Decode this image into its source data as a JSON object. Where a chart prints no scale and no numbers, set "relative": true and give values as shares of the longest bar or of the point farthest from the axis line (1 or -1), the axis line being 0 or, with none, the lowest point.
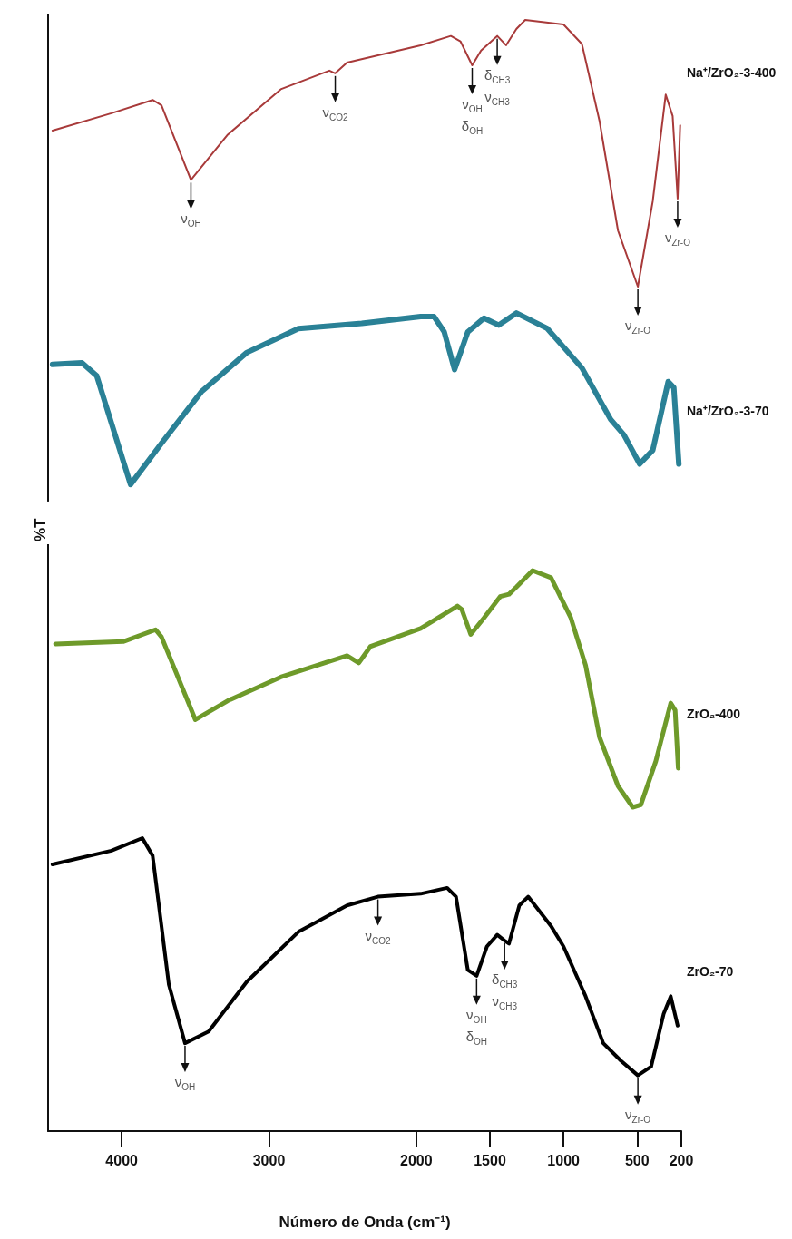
{
  "chart_data": [
    {
      "type": "line",
      "relative": true,
      "xlim": [
        4500,
        200
      ],
      "xticks": [
        4000,
        3000,
        2000,
        1500,
        1000,
        500,
        200
      ],
      "tick_labels": false,
      "grid": false,
      "legend": false,
      "marker": "none",
      "line_style": "solid",
      "series": [
        {
          "name": "Na⁺/ZrO₂-3-400",
          "color": "#a83a3a",
          "x": [
            4470,
            4070,
            3790,
            3730,
            3530,
            3280,
            2920,
            2590,
            2550,
            2470,
            1970,
            1765,
            1700,
            1620,
            1560,
            1450,
            1390,
            1320,
            1260,
            1000,
            875,
            755,
            630,
            495,
            394,
            306,
            259,
            225,
            208
          ],
          "values": [
            0.585,
            0.65,
            0.7,
            0.68,
            0.4,
            0.57,
            0.74,
            0.81,
            0.8,
            0.84,
            0.905,
            0.94,
            0.92,
            0.83,
            0.885,
            0.94,
            0.905,
            0.966,
            1.0,
            0.983,
            0.91,
            0.62,
            0.21,
            0,
            0.32,
            0.72,
            0.64,
            0.33,
            0.605
          ]
        }
      ],
      "annotations": [
        {
          "text": "ν$_{OH}$",
          "x": 3530,
          "y": 0.4
        },
        {
          "text": "ν$_{CO2}$",
          "x": 2550,
          "y": 0.8
        },
        {
          "text": "ν$_{OH}$\nδ$_{OH}$",
          "x": 1620,
          "y": 0.83
        },
        {
          "text": "δ$_{CH3}$\nν$_{CH3}$",
          "x": 1450,
          "y": 0.94
        },
        {
          "text": "ν$_{Zr-O}$",
          "x": 495,
          "y": 0
        },
        {
          "text": "ν$_{Zr-O}$",
          "x": 225,
          "y": 0.33
        }
      ]
    },
    {
      "type": "line",
      "relative": true,
      "xlim": [
        4500,
        200
      ],
      "xticks": [
        4000,
        3000,
        2000,
        1500,
        1000,
        500,
        200
      ],
      "tick_labels": false,
      "grid": false,
      "legend": false,
      "marker": "none",
      "line_style": "solid",
      "ylabel": "%T",
      "series": [
        {
          "name": "Na⁺/ZrO₂-3-70",
          "color": "#2a8196",
          "x": [
            4470,
            4270,
            4170,
            3940,
            3730,
            3460,
            3150,
            2800,
            2370,
            1970,
            1880,
            1810,
            1740,
            1650,
            1540,
            1440,
            1320,
            1110,
            875,
            680,
            590,
            483,
            394,
            289,
            251,
            217
          ],
          "values": [
            0.7,
            0.71,
            0.635,
            0,
            0.24,
            0.54,
            0.77,
            0.91,
            0.94,
            0.98,
            0.98,
            0.89,
            0.67,
            0.89,
            0.97,
            0.93,
            1.0,
            0.91,
            0.68,
            0.38,
            0.29,
            0.12,
            0.2,
            0.6,
            0.565,
            0.12
          ]
        }
      ]
    },
    {
      "type": "line",
      "relative": true,
      "xlim": [
        4500,
        200
      ],
      "xticks": [
        4000,
        3000,
        2000,
        1500,
        1000,
        500,
        200
      ],
      "tick_labels": false,
      "grid": false,
      "legend": false,
      "marker": "none",
      "line_style": "solid",
      "series": [
        {
          "name": "ZrO₂-400",
          "color": "#6e9a2a",
          "x": [
            4450,
            3990,
            3770,
            3730,
            3500,
            3280,
            2920,
            2470,
            2390,
            2310,
            1970,
            1720,
            1690,
            1630,
            1540,
            1430,
            1370,
            1320,
            1210,
            1085,
            950,
            850,
            755,
            630,
            530,
            475,
            373,
            272,
            242,
            221
          ],
          "values": [
            0.69,
            0.7,
            0.75,
            0.72,
            0.37,
            0.45,
            0.55,
            0.64,
            0.61,
            0.68,
            0.755,
            0.85,
            0.835,
            0.73,
            0.8,
            0.89,
            0.9,
            0.93,
            1.0,
            0.97,
            0.8,
            0.6,
            0.295,
            0.09,
            0,
            0.01,
            0.195,
            0.44,
            0.41,
            0.165
          ]
        }
      ]
    },
    {
      "type": "line",
      "relative": true,
      "xlim": [
        4500,
        200
      ],
      "xticks": [
        4000,
        3000,
        2000,
        1500,
        1000,
        500,
        200
      ],
      "tick_labels": "x",
      "grid": false,
      "legend": false,
      "marker": "none",
      "line_style": "solid",
      "xlabel": "Número de Onda (cm⁻¹)",
      "series": [
        {
          "name": "ZrO₂-70",
          "color": "#000000",
          "x": [
            4470,
            4070,
            3860,
            3790,
            3680,
            3570,
            3410,
            3150,
            2800,
            2470,
            2260,
            1970,
            1790,
            1730,
            1650,
            1590,
            1520,
            1450,
            1400,
            1370,
            1300,
            1240,
            1085,
            1000,
            850,
            730,
            610,
            495,
            405,
            320,
            272,
            225
          ],
          "values": [
            0.91,
            0.957,
            1.0,
            0.94,
            0.5,
            0.3,
            0.34,
            0.51,
            0.68,
            0.77,
            0.8,
            0.81,
            0.83,
            0.8,
            0.55,
            0.53,
            0.63,
            0.67,
            0.65,
            0.64,
            0.77,
            0.8,
            0.7,
            0.63,
            0.46,
            0.3,
            0.24,
            0.19,
            0.22,
            0.4,
            0.46,
            0.36
          ]
        }
      ],
      "annotations": [
        {
          "text": "ν$_{OH}$",
          "x": 3570,
          "y": 0.3
        },
        {
          "text": "ν$_{CO2}$",
          "x": 2260,
          "y": 0.8
        },
        {
          "text": "ν$_{OH}$\nδ$_{OH}$",
          "x": 1590,
          "y": 0.53
        },
        {
          "text": "δ$_{CH3}$\nν$_{CH3}$",
          "x": 1400,
          "y": 0.65
        },
        {
          "text": "ν$_{Zr-O}$",
          "x": 495,
          "y": 0.19
        }
      ]
    }
  ]
}
